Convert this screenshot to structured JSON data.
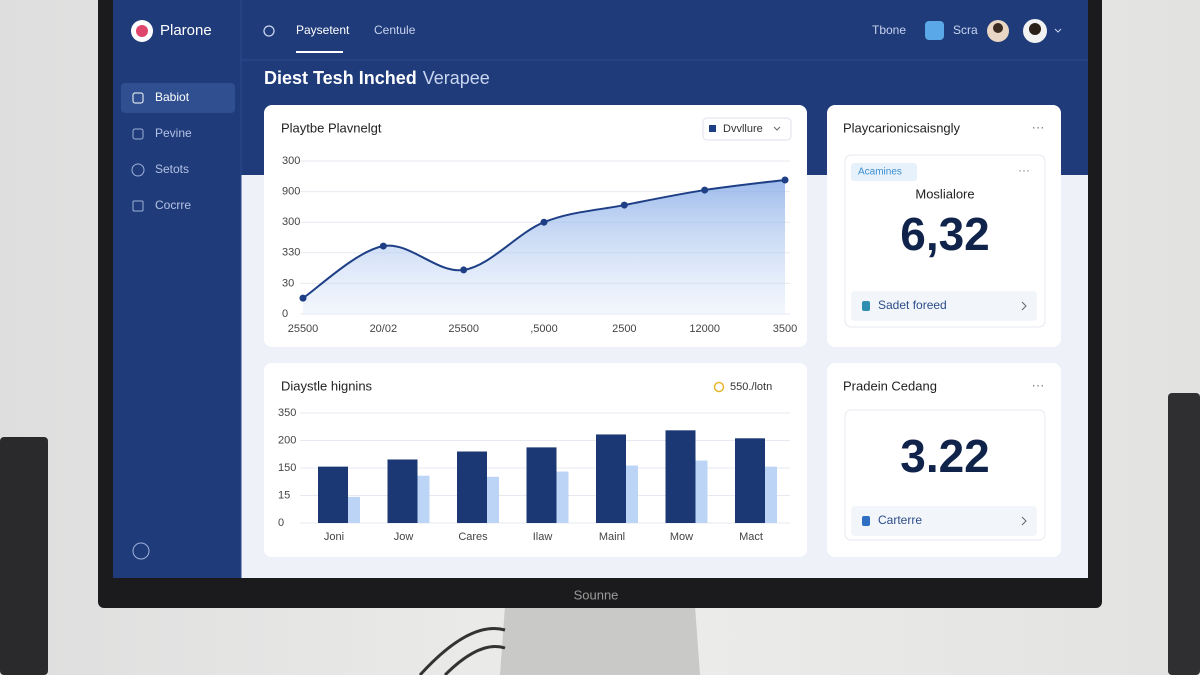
{
  "header": {
    "logo": "Plarone",
    "nav": [
      "Paysetent",
      "Centule"
    ],
    "right": [
      "Tbone",
      "Scra"
    ]
  },
  "sidebar": {
    "items": [
      "Babiot",
      "Pevine",
      "Setots",
      "Cocrre"
    ]
  },
  "page_title": {
    "main": "Diest Tesh Inched",
    "sub": "Verapee"
  },
  "line_chart": {
    "type": "line",
    "title": "Playtbe Plavnelgt",
    "filter": "Dvvllure",
    "y_labels": [
      "300",
      "900",
      "300",
      "330",
      "30",
      "0"
    ],
    "ylim": [
      0,
      5
    ],
    "categories": [
      "25500",
      "20/02",
      "25500",
      ",5000",
      "2500",
      "12000",
      "3500"
    ],
    "values": [
      0.52,
      2.22,
      1.44,
      3.0,
      3.56,
      4.05,
      4.38
    ],
    "color": "#1e3f86"
  },
  "bar_chart": {
    "type": "bar",
    "title": "Diaystle hignins",
    "badge": "550./lotn",
    "y_labels": [
      "350",
      "200",
      "150",
      "15",
      "0"
    ],
    "ylim": [
      0,
      4
    ],
    "categories": [
      "Joni",
      "Jow",
      "Cares",
      "Ilaw",
      "Mainl",
      "Mow",
      "Mact"
    ],
    "series": [
      {
        "color": "#1c3874",
        "values": [
          2.05,
          2.31,
          2.6,
          2.75,
          3.22,
          3.37,
          3.08
        ]
      },
      {
        "color": "#bcd4f6",
        "values": [
          0.95,
          1.72,
          1.68,
          1.87,
          2.09,
          2.27,
          2.05
        ]
      }
    ]
  },
  "metric_card": {
    "title": "Playcarionicsaisngly",
    "tag": "Acamines",
    "label": "Moslialore",
    "value": "6,32",
    "footer": "Sadet foreed"
  },
  "metric_card_2": {
    "title": "Pradein Cedang",
    "value": "3.22",
    "footer": "Carterre"
  },
  "monitor": {
    "brand": "Sounne"
  }
}
